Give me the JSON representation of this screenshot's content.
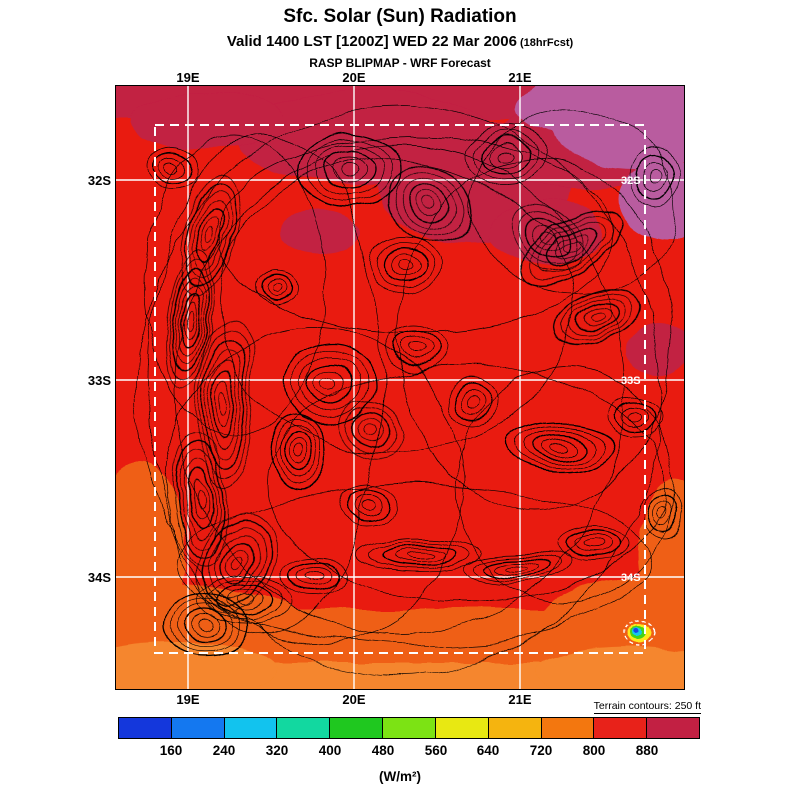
{
  "header": {
    "title": "Sfc. Solar (Sun) Radiation",
    "valid": "Valid 1400 LST [1200Z] WED 22 Mar 2006",
    "forecast_note": "(18hrFcst)",
    "model": "RASP BLIPMAP - WRF Forecast"
  },
  "map": {
    "top_labels": [
      "19E",
      "20E",
      "21E"
    ],
    "bottom_labels": [
      "19E",
      "20E",
      "21E"
    ],
    "left_labels": [
      "32S",
      "33S",
      "34S"
    ],
    "right_edge_labels": [
      "32S",
      "33S",
      "34S"
    ]
  },
  "colorbar": {
    "segments": [
      "#1437dc",
      "#1478f0",
      "#12c3ee",
      "#12d8a0",
      "#1fc81f",
      "#7ce314",
      "#e8e812",
      "#f5b40f",
      "#f3770f",
      "#e8221a",
      "#c22043"
    ],
    "ticks": [
      "160",
      "240",
      "320",
      "400",
      "480",
      "560",
      "640",
      "720",
      "800",
      "880"
    ],
    "units": "(W/m²)",
    "terrain_note": "Terrain contours: 250 ft"
  },
  "chart_data": {
    "type": "contour_map",
    "title": "Sfc. Solar (Sun) Radiation",
    "units": "W/m²",
    "colorbar_values": [
      160,
      240,
      320,
      400,
      480,
      560,
      640,
      720,
      800,
      880
    ],
    "colorbar_colors": [
      "#1437dc",
      "#1478f0",
      "#12c3ee",
      "#12d8a0",
      "#1fc81f",
      "#7ce314",
      "#e8e812",
      "#f5b40f",
      "#f3770f",
      "#e8221a",
      "#c22043"
    ],
    "x_ticks": [
      "19E",
      "20E",
      "21E"
    ],
    "y_ticks": [
      "32S",
      "33S",
      "34S"
    ],
    "terrain_contour_interval": "250 ft"
  }
}
